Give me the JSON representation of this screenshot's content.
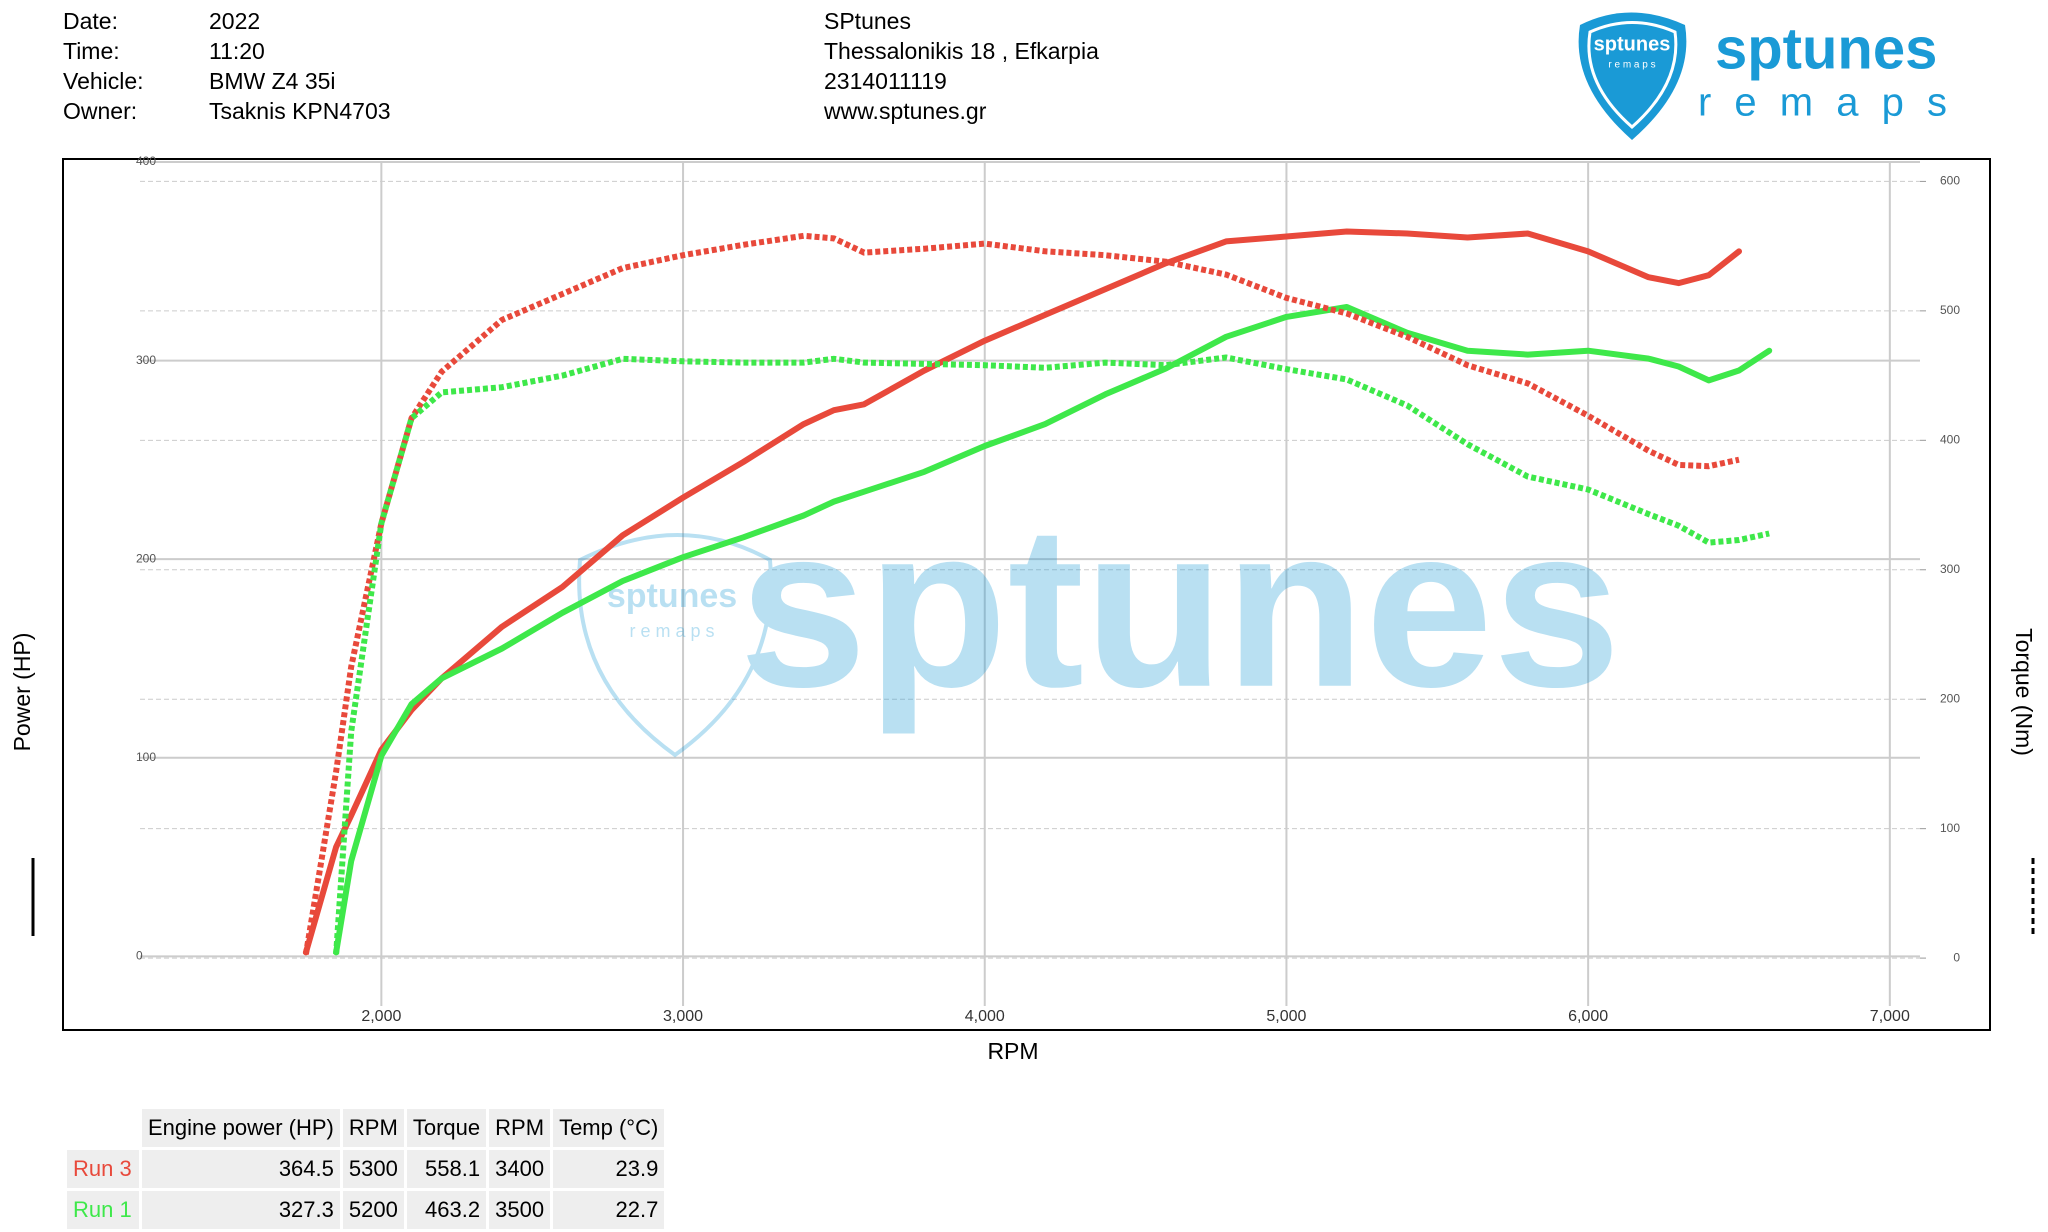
{
  "header": {
    "rows": [
      [
        "Date:",
        "2022"
      ],
      [
        "Time:",
        "11:20"
      ],
      [
        "Vehicle:",
        "BMW Z4 35i"
      ],
      [
        "Owner:",
        "Tsaknis KPN4703"
      ]
    ],
    "shop": [
      "SPtunes",
      "Thessalonikis 18 , Efkarpia",
      "2314011119",
      "www.sptunes.gr"
    ]
  },
  "logo": {
    "name": "sptunes",
    "tagline": "r e m a p s"
  },
  "chart_data": {
    "type": "line",
    "xlabel": "RPM",
    "ylabel": "Power (HP)",
    "y2label": "Torque (Nm)",
    "xlim": [
      1200,
      7100
    ],
    "xticks": [
      {
        "value": 2000,
        "label": "2,000"
      },
      {
        "value": 3000,
        "label": "3,000"
      },
      {
        "value": 4000,
        "label": "4,000"
      },
      {
        "value": 5000,
        "label": "5,000"
      },
      {
        "value": 6000,
        "label": "6,000"
      },
      {
        "value": 7000,
        "label": "7,000"
      }
    ],
    "ylim": [
      -25,
      400
    ],
    "yticks": [
      0,
      100,
      200,
      300,
      400
    ],
    "y2lim": [
      -37,
      615
    ],
    "y2ticks": [
      0,
      100,
      200,
      300,
      400,
      500,
      600
    ],
    "grid": true,
    "x": [
      1750,
      1850,
      1900,
      2000,
      2100,
      2200,
      2400,
      2600,
      2800,
      3000,
      3200,
      3400,
      3500,
      3600,
      3800,
      4000,
      4200,
      4400,
      4600,
      4800,
      5000,
      5200,
      5400,
      5600,
      5800,
      6000,
      6200,
      6300,
      6400,
      6500,
      6600
    ],
    "series": [
      {
        "color": "#e8493b",
        "dash": false,
        "values": [
          2,
          55,
          71,
          104,
          124,
          140,
          166,
          186,
          212,
          231,
          249,
          268,
          275,
          278,
          295,
          310,
          323,
          336,
          349,
          360,
          362.5,
          365,
          364,
          362,
          364,
          355,
          342,
          339,
          343,
          355,
          null
        ]
      },
      {
        "color": "#3ee84a",
        "dash": false,
        "values": [
          null,
          2,
          48,
          101,
          127,
          140,
          155,
          173,
          189,
          201,
          211,
          222,
          229,
          234,
          244,
          257,
          268,
          283,
          296,
          312,
          322,
          327,
          314,
          305,
          303,
          305,
          301,
          297,
          290,
          295,
          305
        ]
      },
      {
        "color": "#e8493b",
        "dash": true,
        "axis": "y2",
        "values": [
          3,
          144,
          225,
          336,
          417,
          453,
          493,
          513,
          533,
          543,
          551,
          558,
          556,
          545,
          548,
          552,
          546,
          543,
          538,
          528,
          510,
          498,
          480,
          458,
          444,
          419,
          392,
          381,
          380,
          385,
          null
        ]
      },
      {
        "color": "#3ee84a",
        "dash": true,
        "axis": "y2",
        "values": [
          null,
          3,
          175,
          336,
          417,
          437,
          441,
          450,
          463,
          461,
          460,
          460,
          463,
          460,
          459,
          458,
          456,
          460,
          458,
          464,
          455,
          447,
          427,
          397,
          372,
          362,
          343,
          334,
          321,
          323,
          328
        ]
      }
    ]
  },
  "table": {
    "header": [
      "Engine power (HP)",
      "RPM",
      "Torque",
      "RPM",
      "Temp (°C)"
    ],
    "rows": [
      [
        "Run 3",
        364.5,
        5300,
        558.1,
        3400,
        23.9
      ],
      [
        "Run 1",
        327.3,
        5200,
        463.2,
        3500,
        22.7
      ]
    ],
    "row_colors": [
      "#e8493b",
      "#3ee84a"
    ]
  }
}
